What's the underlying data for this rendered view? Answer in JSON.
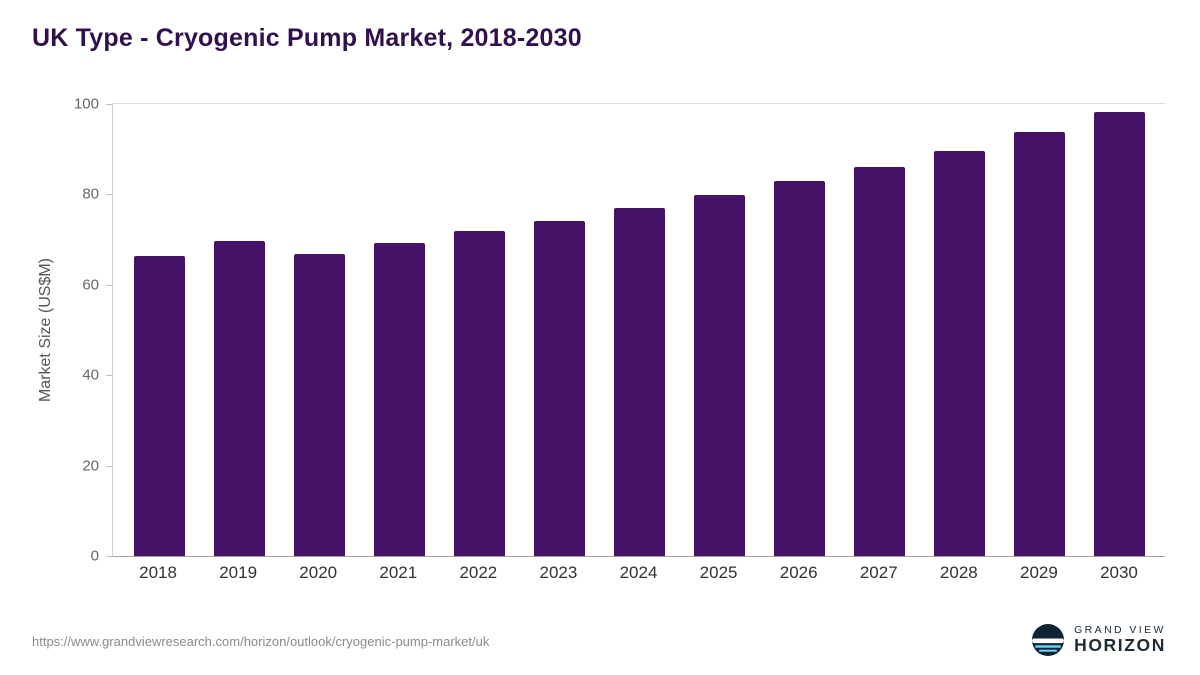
{
  "title": "UK Type - Cryogenic Pump Market, 2018-2030",
  "chart_data": {
    "type": "bar",
    "title": "UK Type - Cryogenic Pump Market, 2018-2030",
    "categories": [
      "2018",
      "2019",
      "2020",
      "2021",
      "2022",
      "2023",
      "2024",
      "2025",
      "2026",
      "2027",
      "2028",
      "2029",
      "2030"
    ],
    "values": [
      66.4,
      69.6,
      66.8,
      69.2,
      71.8,
      74.1,
      76.9,
      79.8,
      82.9,
      86.1,
      89.6,
      93.9,
      98.2
    ],
    "xlabel": "",
    "ylabel": "Market Size (US$M)",
    "ylim": [
      0,
      100
    ],
    "yticks": [
      0,
      20,
      40,
      60,
      80,
      100
    ],
    "bar_color": "#471168",
    "grid": "top-boundary-line-only",
    "legend_position": "none"
  },
  "footer": {
    "source_url": "https://www.grandviewresearch.com/horizon/outlook/cryogenic-pump-market/uk",
    "brand_top": "GRAND VIEW",
    "brand_bottom": "HORIZON"
  },
  "colors": {
    "bar": "#471168",
    "title_text": "#31104e",
    "axis_text": "#666666",
    "logo_navy": "#0d2433",
    "logo_blue": "#6ccff1"
  }
}
